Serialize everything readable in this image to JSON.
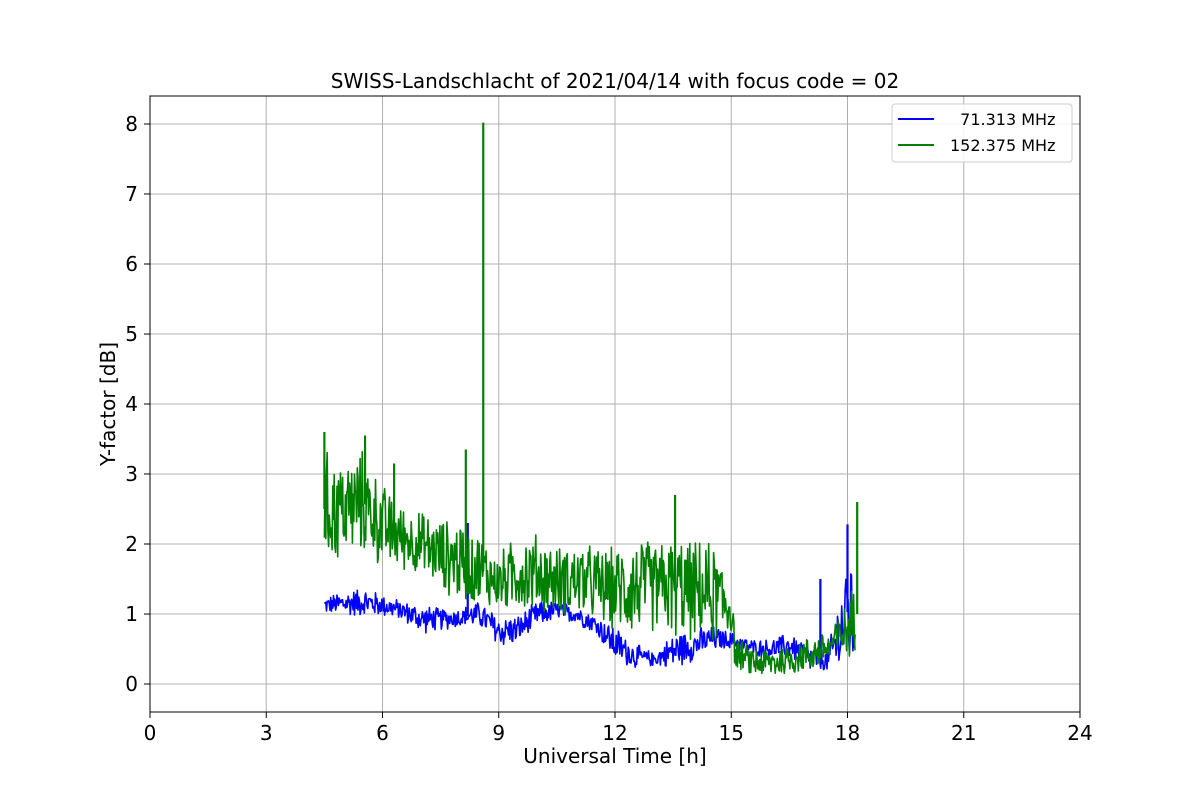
{
  "chart_data": {
    "type": "line",
    "title": "SWISS-Landschlacht of 2021/04/14 with focus code = 02",
    "xlabel": "Universal Time [h]",
    "ylabel": "Y-factor [dB]",
    "xlim": [
      0,
      24
    ],
    "ylim": [
      -0.4,
      8.4
    ],
    "xticks": [
      0,
      3,
      6,
      9,
      12,
      15,
      18,
      21,
      24
    ],
    "yticks": [
      0,
      1,
      2,
      3,
      4,
      5,
      6,
      7,
      8
    ],
    "grid": true,
    "legend_position": "top-right",
    "series": [
      {
        "name": "  71.313 MHz",
        "color": "#0000ff",
        "envelope": [
          {
            "x": 4.5,
            "low": 1.0,
            "high": 1.25
          },
          {
            "x": 5.0,
            "low": 0.95,
            "high": 1.35
          },
          {
            "x": 5.5,
            "low": 0.95,
            "high": 1.4
          },
          {
            "x": 6.0,
            "low": 0.95,
            "high": 1.3
          },
          {
            "x": 6.5,
            "low": 0.9,
            "high": 1.2
          },
          {
            "x": 7.0,
            "low": 0.7,
            "high": 1.15
          },
          {
            "x": 7.5,
            "low": 0.75,
            "high": 1.1
          },
          {
            "x": 8.0,
            "low": 0.8,
            "high": 1.1
          },
          {
            "x": 8.5,
            "low": 0.8,
            "high": 1.2
          },
          {
            "x": 9.0,
            "low": 0.5,
            "high": 1.0
          },
          {
            "x": 9.5,
            "low": 0.55,
            "high": 1.0
          },
          {
            "x": 10.0,
            "low": 0.8,
            "high": 1.2
          },
          {
            "x": 10.5,
            "low": 0.9,
            "high": 1.2
          },
          {
            "x": 11.0,
            "low": 0.85,
            "high": 1.15
          },
          {
            "x": 11.5,
            "low": 0.7,
            "high": 1.0
          },
          {
            "x": 12.0,
            "low": 0.3,
            "high": 0.85
          },
          {
            "x": 12.5,
            "low": 0.2,
            "high": 0.6
          },
          {
            "x": 13.0,
            "low": 0.25,
            "high": 0.45
          },
          {
            "x": 13.5,
            "low": 0.2,
            "high": 0.75
          },
          {
            "x": 14.0,
            "low": 0.3,
            "high": 0.8
          },
          {
            "x": 14.5,
            "low": 0.45,
            "high": 0.85
          },
          {
            "x": 15.0,
            "low": 0.5,
            "high": 0.75
          },
          {
            "x": 15.5,
            "low": 0.4,
            "high": 0.65
          },
          {
            "x": 16.0,
            "low": 0.35,
            "high": 0.65
          },
          {
            "x": 16.5,
            "low": 0.35,
            "high": 0.75
          },
          {
            "x": 17.0,
            "low": 0.15,
            "high": 0.6
          },
          {
            "x": 17.5,
            "low": 0.15,
            "high": 0.5
          },
          {
            "x": 18.0,
            "low": 0.05,
            "high": 2.0
          },
          {
            "x": 18.2,
            "low": 0.05,
            "high": 1.7
          }
        ],
        "spikes": [
          {
            "x": 8.2,
            "y": 2.3
          },
          {
            "x": 17.3,
            "y": 1.5
          },
          {
            "x": 18.0,
            "y": 2.28
          }
        ]
      },
      {
        "name": "152.375 MHz",
        "color": "#008000",
        "envelope": [
          {
            "x": 4.5,
            "low": 1.6,
            "high": 3.4
          },
          {
            "x": 5.0,
            "low": 1.7,
            "high": 3.3
          },
          {
            "x": 5.5,
            "low": 1.8,
            "high": 3.4
          },
          {
            "x": 6.0,
            "low": 1.6,
            "high": 2.9
          },
          {
            "x": 6.5,
            "low": 1.6,
            "high": 2.6
          },
          {
            "x": 7.0,
            "low": 1.5,
            "high": 2.5
          },
          {
            "x": 7.5,
            "low": 1.3,
            "high": 2.4
          },
          {
            "x": 8.0,
            "low": 1.1,
            "high": 2.4
          },
          {
            "x": 8.5,
            "low": 1.1,
            "high": 2.2
          },
          {
            "x": 9.0,
            "low": 1.0,
            "high": 1.9
          },
          {
            "x": 9.5,
            "low": 1.0,
            "high": 2.2
          },
          {
            "x": 10.0,
            "low": 0.95,
            "high": 2.2
          },
          {
            "x": 10.5,
            "low": 0.95,
            "high": 2.0
          },
          {
            "x": 11.0,
            "low": 0.9,
            "high": 2.1
          },
          {
            "x": 11.5,
            "low": 0.85,
            "high": 2.0
          },
          {
            "x": 12.0,
            "low": 0.7,
            "high": 2.0
          },
          {
            "x": 12.5,
            "low": 0.6,
            "high": 2.2
          },
          {
            "x": 13.0,
            "low": 0.7,
            "high": 2.1
          },
          {
            "x": 13.5,
            "low": 0.6,
            "high": 2.2
          },
          {
            "x": 14.0,
            "low": 0.55,
            "high": 2.1
          },
          {
            "x": 14.5,
            "low": 0.5,
            "high": 2.1
          },
          {
            "x": 15.0,
            "low": 0.6,
            "high": 1.6
          },
          {
            "x": 15.1,
            "low": 0.2,
            "high": 0.7
          },
          {
            "x": 15.5,
            "low": 0.1,
            "high": 0.55
          },
          {
            "x": 16.0,
            "low": 0.05,
            "high": 0.55
          },
          {
            "x": 16.5,
            "low": 0.1,
            "high": 0.6
          },
          {
            "x": 17.0,
            "low": 0.15,
            "high": 0.7
          },
          {
            "x": 17.5,
            "low": 0.25,
            "high": 0.8
          },
          {
            "x": 18.0,
            "low": 0.35,
            "high": 1.2
          },
          {
            "x": 18.2,
            "low": 0.4,
            "high": 1.6
          }
        ],
        "spikes": [
          {
            "x": 4.5,
            "y": 3.6
          },
          {
            "x": 5.55,
            "y": 3.55
          },
          {
            "x": 6.3,
            "y": 3.15
          },
          {
            "x": 8.15,
            "y": 3.35
          },
          {
            "x": 8.6,
            "y": 8.02
          },
          {
            "x": 13.55,
            "y": 2.7
          },
          {
            "x": 18.25,
            "y": 2.6
          }
        ]
      }
    ]
  }
}
